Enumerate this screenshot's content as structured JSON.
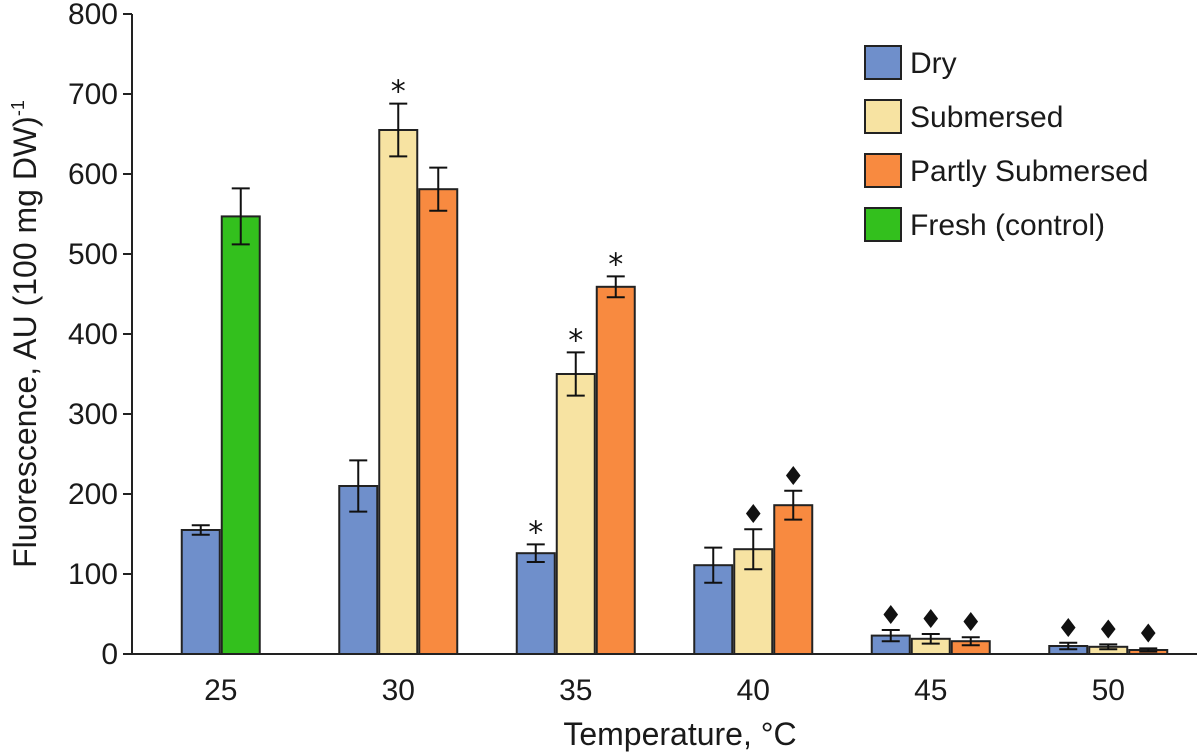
{
  "chart_data": {
    "type": "bar",
    "title": "",
    "xlabel": "Temperature, °C",
    "ylabel": "Fluorescence, AU (100 mg DW)",
    "ylabel_superscript": "-1",
    "ylim": [
      0,
      800
    ],
    "yticks": [
      "0",
      "100",
      "200",
      "300",
      "400",
      "500",
      "600",
      "700",
      "800"
    ],
    "categories": [
      "25",
      "30",
      "35",
      "40",
      "45",
      "50"
    ],
    "series": [
      {
        "name": "Dry",
        "color": "#6F8FCB",
        "values": [
          155,
          210,
          126,
          111,
          23,
          10
        ],
        "errors": [
          6,
          32,
          11,
          22,
          7,
          4
        ],
        "markers": [
          "",
          "",
          "*",
          "",
          "♦",
          "♦"
        ]
      },
      {
        "name": "Submersed",
        "color": "#F7E3A2",
        "values": [
          null,
          655,
          350,
          131,
          19,
          9
        ],
        "errors": [
          null,
          33,
          27,
          25,
          6,
          3
        ],
        "markers": [
          "",
          "*",
          "*",
          "♦",
          "♦",
          "♦"
        ]
      },
      {
        "name": "Partly Submersed",
        "color": "#F88A40",
        "values": [
          null,
          581,
          459,
          186,
          16,
          5
        ],
        "errors": [
          null,
          27,
          13,
          18,
          5,
          2
        ],
        "markers": [
          "",
          "",
          "*",
          "♦",
          "♦",
          "♦"
        ]
      },
      {
        "name": "Fresh (control)",
        "color": "#33C01D",
        "values": [
          547,
          null,
          null,
          null,
          null,
          null
        ],
        "errors": [
          35,
          null,
          null,
          null,
          null,
          null
        ],
        "markers": [
          "",
          "",
          "",
          "",
          "",
          ""
        ]
      }
    ],
    "legend": "top-right",
    "grid": false
  }
}
